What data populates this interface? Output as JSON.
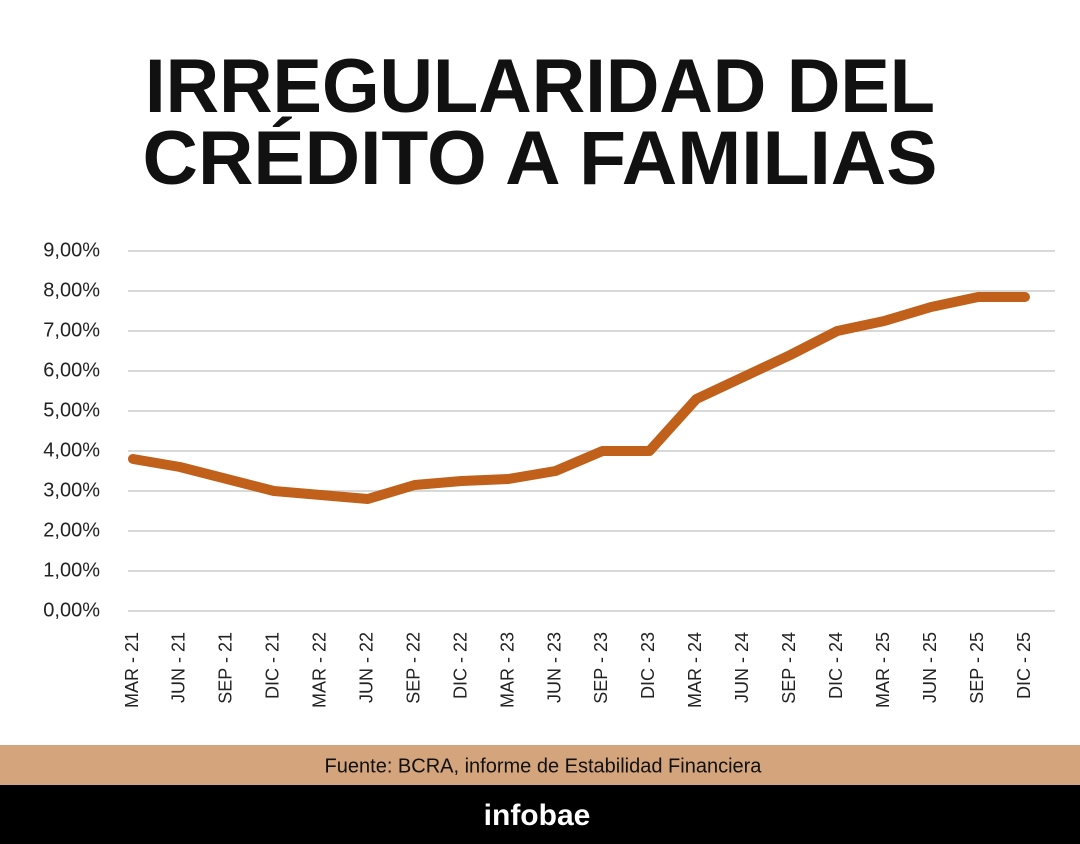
{
  "chart_data": {
    "type": "line",
    "title": [
      "IRREGULARIDAD DEL",
      "CRÉDITO A FAMILIAS"
    ],
    "categories": [
      "MAR - 21",
      "JUN - 21",
      "SEP - 21",
      "DIC - 21",
      "MAR - 22",
      "JUN - 22",
      "SEP - 22",
      "DIC - 22",
      "MAR - 23",
      "JUN - 23",
      "SEP - 23",
      "DIC - 23",
      "MAR - 24",
      "JUN - 24",
      "SEP - 24",
      "DIC - 24",
      "MAR - 25",
      "JUN - 25",
      "SEP - 25",
      "DIC - 25"
    ],
    "series": [
      {
        "color": "#c0601a",
        "values": [
          3.8,
          3.6,
          3.3,
          3.0,
          2.9,
          2.8,
          3.15,
          3.25,
          3.3,
          3.5,
          4.0,
          4.0,
          5.3,
          5.85,
          6.4,
          7.0,
          7.25,
          7.6,
          7.85,
          7.85
        ]
      }
    ],
    "ylim": [
      0,
      9
    ],
    "yticks": [
      {
        "value": 0,
        "label": "0,00%"
      },
      {
        "value": 1,
        "label": "1,00%"
      },
      {
        "value": 2,
        "label": "2,00%"
      },
      {
        "value": 3,
        "label": "3,00%"
      },
      {
        "value": 4,
        "label": "4,00%"
      },
      {
        "value": 5,
        "label": "5,00%"
      },
      {
        "value": 6,
        "label": "6,00%"
      },
      {
        "value": 7,
        "label": "7,00%"
      },
      {
        "value": 8,
        "label": "8,00%"
      },
      {
        "value": 9,
        "label": "9,00%"
      }
    ],
    "grid": true,
    "source": "Fuente: BCRA, informe de Estabilidad Financiera",
    "brand": "infobae"
  }
}
